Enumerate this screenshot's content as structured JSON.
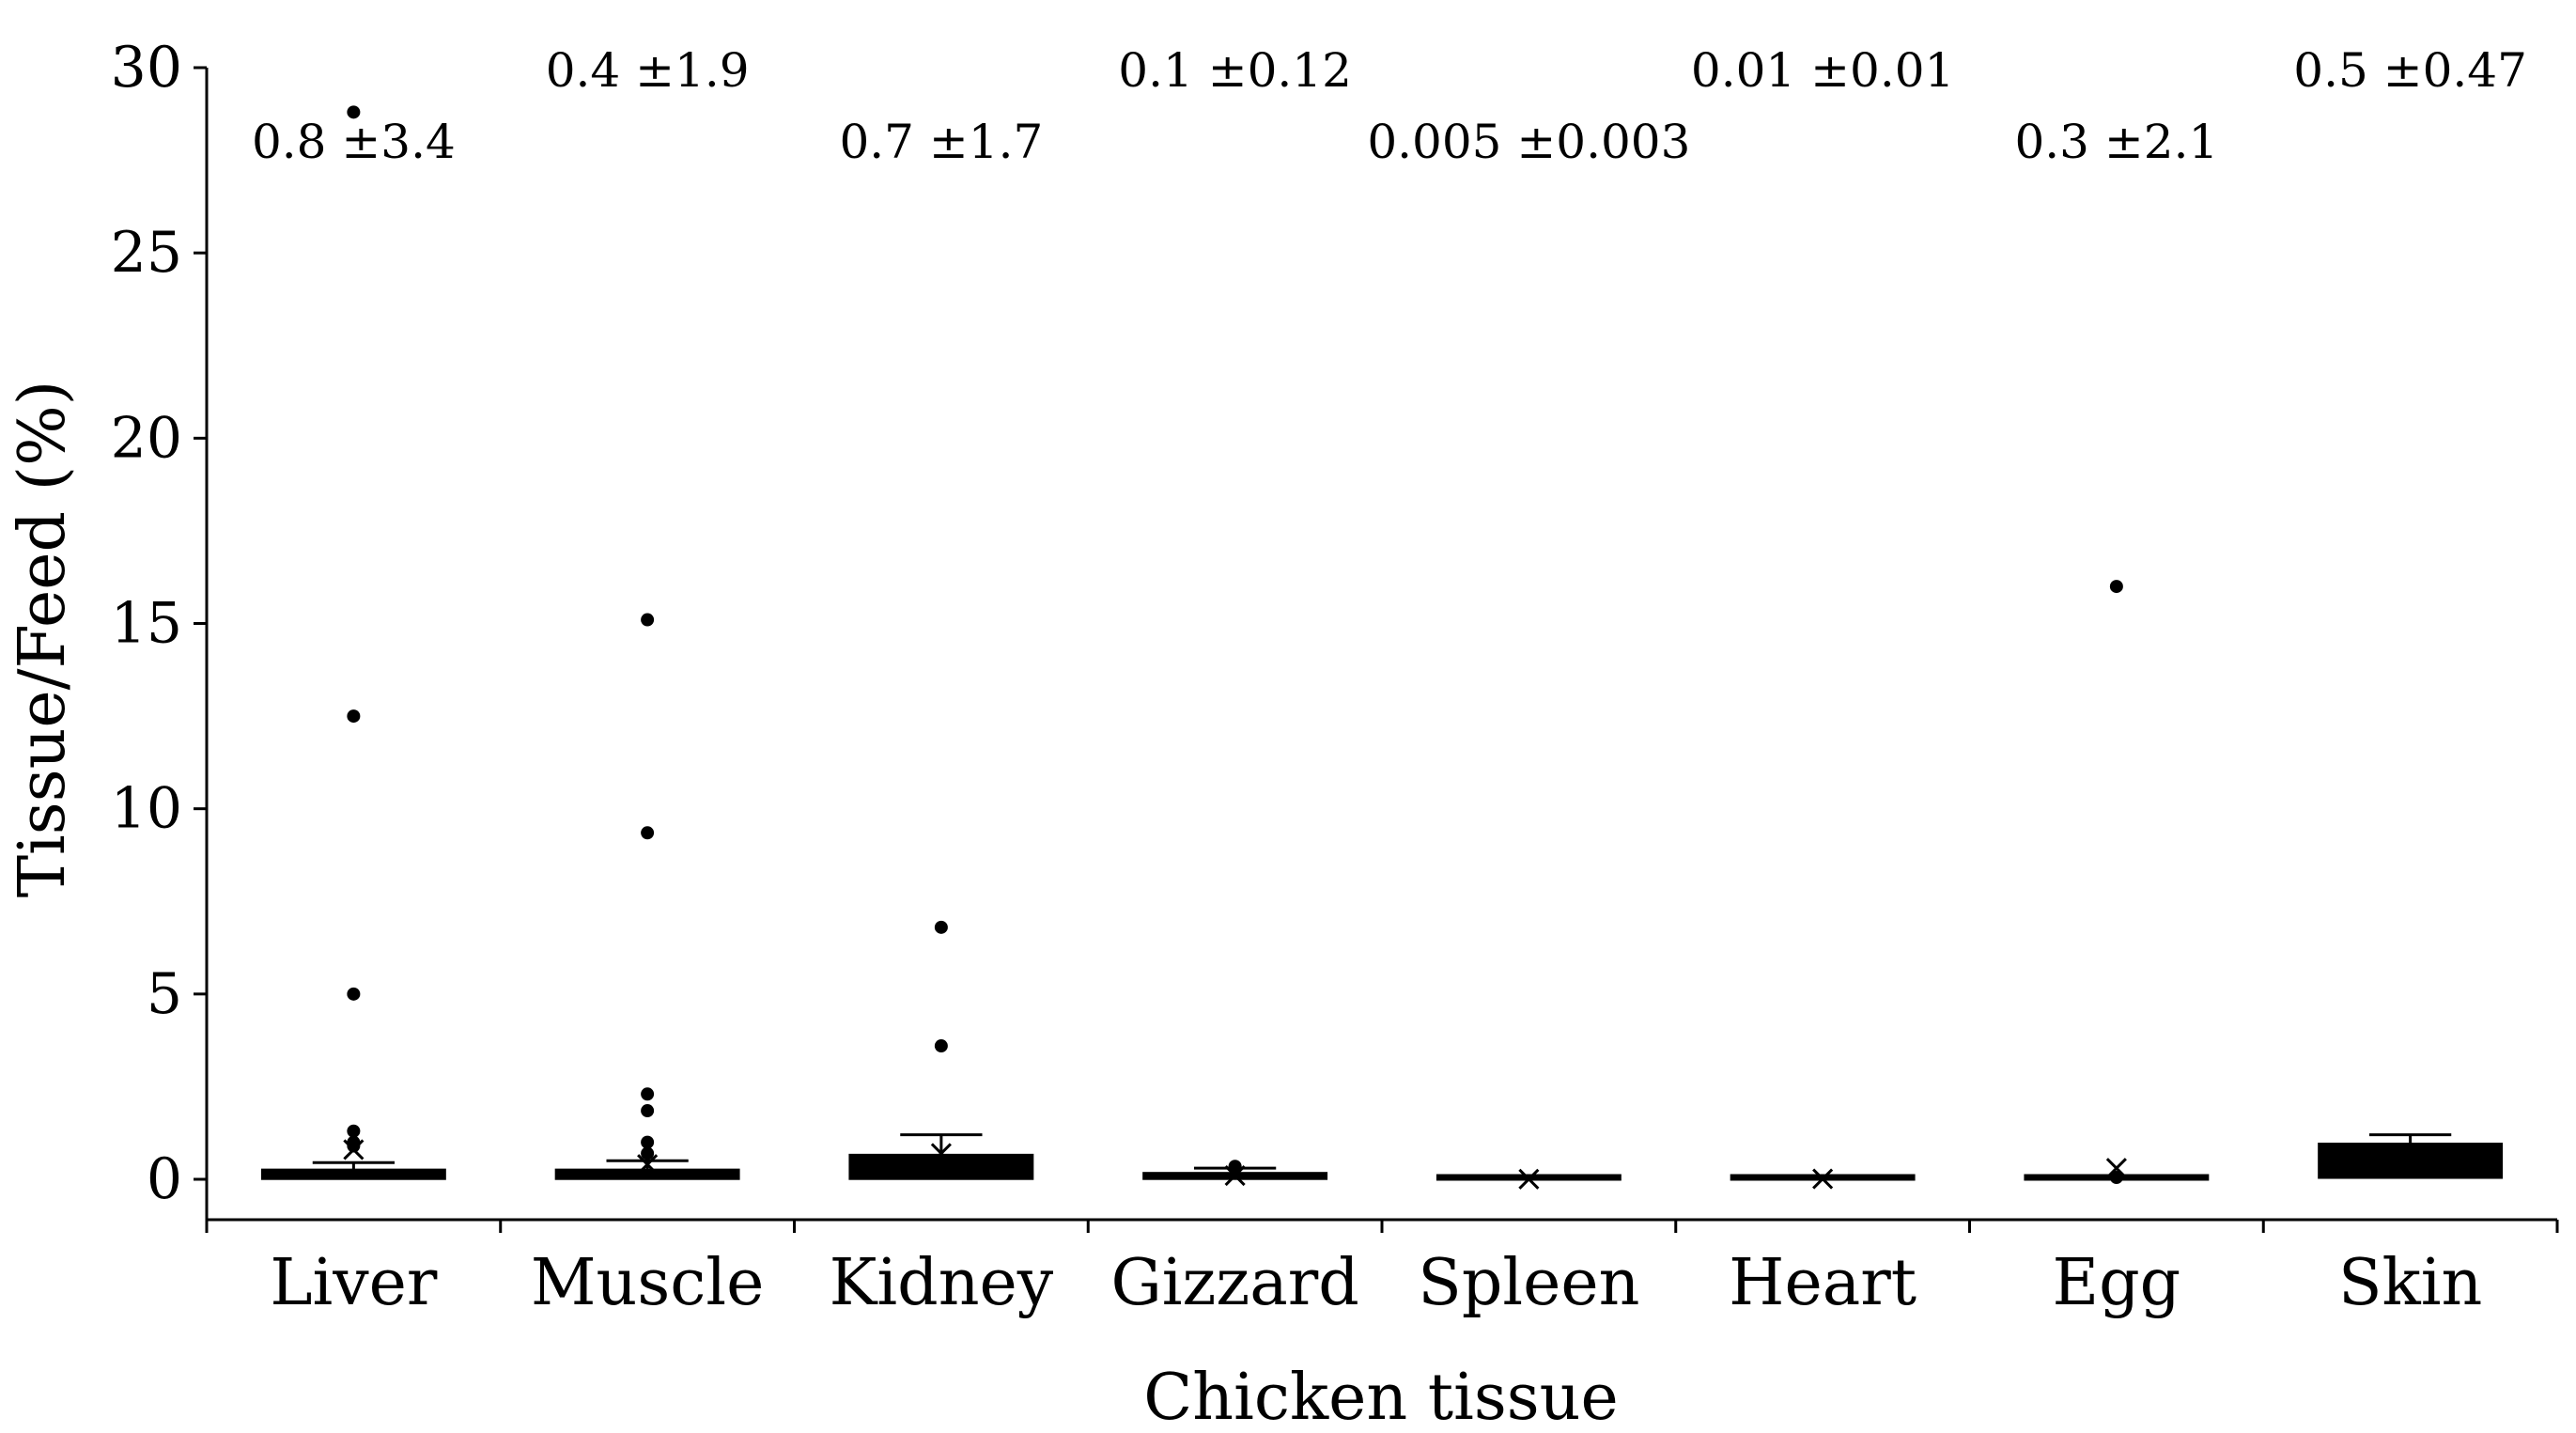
{
  "chart_data": {
    "type": "box",
    "xlabel": "Chicken tissue",
    "ylabel": "Tissue/Feed (%)",
    "ylim": [
      0,
      30
    ],
    "yticks": [
      0,
      5,
      10,
      15,
      20,
      25,
      30
    ],
    "grid": false,
    "legend": "none",
    "categories": [
      "Liver",
      "Muscle",
      "Kidney",
      "Gizzard",
      "Spleen",
      "Heart",
      "Egg",
      "Skin"
    ],
    "annotations": [
      "0.8 ±3.4",
      "0.4 ±1.9",
      "0.7 ±1.7",
      "0.1 ±0.12",
      "0.005 ±0.003",
      "0.01 ±0.01",
      "0.3 ±2.1",
      "0.5 ±0.47"
    ],
    "boxes": [
      {
        "category": "Liver",
        "whisker_low": 0,
        "q1": 0.02,
        "median": 0.1,
        "q3": 0.25,
        "whisker_high": 0.45,
        "mean": 0.8,
        "outliers": [
          28.8,
          12.5,
          5.0,
          1.3,
          1.0,
          0.9
        ]
      },
      {
        "category": "Muscle",
        "whisker_low": 0,
        "q1": 0.02,
        "median": 0.1,
        "q3": 0.25,
        "whisker_high": 0.5,
        "mean": 0.4,
        "outliers": [
          15.1,
          9.35,
          2.3,
          1.85,
          1.0,
          0.7
        ]
      },
      {
        "category": "Kidney",
        "whisker_low": 0,
        "q1": 0.02,
        "median": 0.3,
        "q3": 0.65,
        "whisker_high": 1.2,
        "mean": 0.7,
        "outliers": [
          6.8,
          3.6
        ]
      },
      {
        "category": "Gizzard",
        "whisker_low": 0,
        "q1": 0.02,
        "median": 0.08,
        "q3": 0.16,
        "whisker_high": 0.3,
        "mean": 0.1,
        "outliers": [
          0.35
        ]
      },
      {
        "category": "Spleen",
        "whisker_low": 0,
        "q1": 0,
        "median": 0,
        "q3": 0.01,
        "whisker_high": 0.01,
        "mean": 0.005,
        "outliers": []
      },
      {
        "category": "Heart",
        "whisker_low": 0,
        "q1": 0,
        "median": 0,
        "q3": 0.02,
        "whisker_high": 0.03,
        "mean": 0.01,
        "outliers": []
      },
      {
        "category": "Egg",
        "whisker_low": 0,
        "q1": 0,
        "median": 0,
        "q3": 0.02,
        "whisker_high": 0.03,
        "mean": 0.3,
        "outliers": [
          16.0,
          0.05
        ]
      },
      {
        "category": "Skin",
        "whisker_low": 0,
        "q1": 0.05,
        "median": 0.5,
        "q3": 0.95,
        "whisker_high": 1.2,
        "mean": 0.5,
        "outliers": []
      }
    ]
  }
}
